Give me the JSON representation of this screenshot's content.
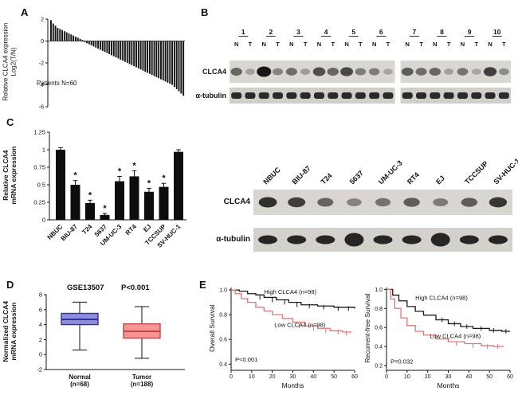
{
  "panels": {
    "a": {
      "label": "A",
      "ylabel_line1": "Relative CLCA4 expression",
      "ylabel_line2": "Log2(T/N)",
      "annotation": "Patients N=60"
    },
    "b": {
      "label": "B",
      "clca4_row": "CLCA4",
      "tubulin_row": "α-tubulin"
    },
    "c": {
      "label": "C",
      "ylabel_line1": "Relative CLCA4",
      "ylabel_line2": "mRNA expression"
    },
    "b2": {
      "clca4_row": "CLCA4",
      "tubulin_row": "α-tubulin"
    },
    "d": {
      "label": "D",
      "title": "GSE13507",
      "pvalue": "P<0.001",
      "ylabel_line1": "Normalized CLCA4",
      "ylabel_line2": "mRNA expression"
    },
    "e": {
      "label": "E",
      "ylabel_left": "Overall Survival",
      "ylabel_right": "Recurrent-free Survival"
    }
  },
  "blots": {
    "paired": {
      "lane_labels": [
        "N",
        "T"
      ],
      "samples": [
        {
          "id": "1",
          "N": 0.5,
          "T": 0.12
        },
        {
          "id": "2",
          "N": 1.0,
          "T": 0.3
        },
        {
          "id": "3",
          "N": 0.45,
          "T": 0.15
        },
        {
          "id": "4",
          "N": 0.65,
          "T": 0.5
        },
        {
          "id": "5",
          "N": 0.7,
          "T": 0.35
        },
        {
          "id": "6",
          "N": 0.35,
          "T": 0.1
        },
        {
          "id": "7",
          "N": 0.55,
          "T": 0.45
        },
        {
          "id": "8",
          "N": 0.5,
          "T": 0.12
        },
        {
          "id": "9",
          "N": 0.4,
          "T": 0.1
        },
        {
          "id": "10",
          "N": 0.75,
          "T": 0.25
        }
      ]
    },
    "cell_lines": {
      "names": [
        "NBUC",
        "BIU-87",
        "T24",
        "5637",
        "UM-UC-3",
        "RT4",
        "EJ",
        "TCCSUP",
        "SV-HUC-1"
      ],
      "clca4": [
        0.85,
        0.75,
        0.5,
        0.3,
        0.4,
        0.55,
        0.35,
        0.55,
        0.8
      ],
      "tubulin": [
        0.9,
        0.9,
        0.9,
        1.0,
        0.9,
        0.9,
        1.0,
        0.9,
        0.9
      ]
    }
  },
  "chart_data": [
    {
      "id": "clca4-waterfall",
      "type": "bar",
      "ylabel": "Relative CLCA4 expression Log2(T/N)",
      "annotation": "Patients N=60",
      "ylim": [
        -6,
        2
      ],
      "yticks": [
        2,
        0,
        -2,
        -4,
        -6
      ],
      "values": [
        1.9,
        1.6,
        1.4,
        1.2,
        1.1,
        1.0,
        0.9,
        0.8,
        0.7,
        0.6,
        0.5,
        0.4,
        0.3,
        0.2,
        0.1,
        -0.1,
        -0.2,
        -0.3,
        -0.4,
        -0.5,
        -0.6,
        -0.7,
        -0.8,
        -0.9,
        -1.0,
        -1.1,
        -1.2,
        -1.3,
        -1.4,
        -1.5,
        -1.6,
        -1.7,
        -1.8,
        -1.9,
        -2.0,
        -2.1,
        -2.2,
        -2.3,
        -2.4,
        -2.5,
        -2.6,
        -2.7,
        -2.8,
        -2.9,
        -3.0,
        -3.1,
        -3.2,
        -3.3,
        -3.4,
        -3.5,
        -3.6,
        -3.7,
        -3.8,
        -3.9,
        -4.0,
        -4.2,
        -4.4,
        -4.6,
        -4.8,
        -5.0
      ]
    },
    {
      "id": "cell-line-qpcr",
      "type": "bar",
      "ylabel": "Relative CLCA4 mRNA expression",
      "ylim": [
        0,
        1.25
      ],
      "yticks": [
        0,
        0.25,
        0.5,
        0.75,
        1,
        1.25
      ],
      "ytick_labels": [
        "0",
        "0.25",
        "0.5",
        "0.75",
        "1",
        "1.25"
      ],
      "categories": [
        "NBUC",
        "BIU-87",
        "T24",
        "5637",
        "UM-UC-3",
        "RT4",
        "EJ",
        "TCCSUP",
        "SV-HUC-1"
      ],
      "values": [
        1.0,
        0.5,
        0.24,
        0.07,
        0.55,
        0.62,
        0.4,
        0.47,
        0.97
      ],
      "errors": [
        0.03,
        0.06,
        0.04,
        0.02,
        0.07,
        0.08,
        0.05,
        0.05,
        0.03
      ],
      "significant": [
        false,
        true,
        true,
        true,
        true,
        true,
        true,
        true,
        false
      ],
      "sig_symbol": "*"
    },
    {
      "id": "gse13507-box",
      "type": "box",
      "title": "GSE13507",
      "pvalue": "P<0.001",
      "ylabel": "Normalized CLCA4 mRNA expression",
      "ylim": [
        -2,
        8
      ],
      "yticks": [
        8,
        6,
        4,
        2,
        0,
        -2
      ],
      "groups": [
        {
          "label_line1": "Normal",
          "label_line2": "(n=68)",
          "whisker_low": 0.6,
          "q1": 4.0,
          "median": 4.7,
          "q3": 5.5,
          "whisker_high": 7.0,
          "fill": "#8d8ddc",
          "stroke": "#32329b"
        },
        {
          "label_line1": "Tumor",
          "label_line2": "(n=188)",
          "whisker_low": -0.5,
          "q1": 2.2,
          "median": 3.1,
          "q3": 4.1,
          "whisker_high": 6.4,
          "fill": "#f79494",
          "stroke": "#c04747"
        }
      ]
    },
    {
      "id": "km-overall",
      "type": "line",
      "ylabel": "Overall Survival",
      "xlabel": "Months",
      "pvalue": "P<0.001",
      "p_pos": [
        2,
        0.42
      ],
      "ylim": [
        0.35,
        1.02
      ],
      "yticks": [
        1.0,
        0.8,
        0.6,
        0.4
      ],
      "ytick_labels": [
        "1.0",
        "0.8",
        "0.6",
        "0.4"
      ],
      "xticks": [
        0,
        10,
        20,
        30,
        40,
        50,
        60
      ],
      "series": [
        {
          "name": "High CLCA4 (n=98)",
          "color": "#1a1a1a",
          "label_pos": [
            16,
            0.97
          ],
          "points": [
            [
              0,
              1.0
            ],
            [
              4,
              0.99
            ],
            [
              8,
              0.97
            ],
            [
              12,
              0.96
            ],
            [
              16,
              0.94
            ],
            [
              22,
              0.92
            ],
            [
              28,
              0.9
            ],
            [
              34,
              0.88
            ],
            [
              42,
              0.87
            ],
            [
              50,
              0.86
            ],
            [
              60,
              0.85
            ]
          ],
          "censors": [
            [
              14,
              0.94
            ],
            [
              20,
              0.92
            ],
            [
              26,
              0.9
            ],
            [
              32,
              0.88
            ],
            [
              38,
              0.87
            ],
            [
              45,
              0.86
            ],
            [
              52,
              0.85
            ],
            [
              57,
              0.85
            ]
          ]
        },
        {
          "name": "Low CLCA4 (n=98)",
          "color": "#e57373",
          "label_pos": [
            21,
            0.7
          ],
          "points": [
            [
              0,
              1.0
            ],
            [
              2,
              0.97
            ],
            [
              5,
              0.93
            ],
            [
              8,
              0.9
            ],
            [
              12,
              0.86
            ],
            [
              16,
              0.83
            ],
            [
              20,
              0.8
            ],
            [
              25,
              0.77
            ],
            [
              30,
              0.74
            ],
            [
              36,
              0.71
            ],
            [
              42,
              0.69
            ],
            [
              48,
              0.67
            ],
            [
              54,
              0.66
            ],
            [
              58,
              0.65
            ]
          ],
          "censors": [
            [
              33,
              0.71
            ],
            [
              40,
              0.69
            ],
            [
              46,
              0.67
            ],
            [
              52,
              0.66
            ],
            [
              56,
              0.65
            ]
          ]
        }
      ]
    },
    {
      "id": "km-rfs",
      "type": "line",
      "ylabel": "Recurrent-free Survival",
      "xlabel": "Months",
      "pvalue": "P=0.032",
      "p_pos": [
        2,
        0.22
      ],
      "ylim": [
        0.15,
        1.02
      ],
      "yticks": [
        1.0,
        0.8,
        0.6,
        0.4,
        0.2
      ],
      "ytick_labels": [
        "1.0",
        "0.8",
        "0.6",
        "0.4",
        "0.2"
      ],
      "xticks": [
        0,
        10,
        20,
        30,
        40,
        50,
        60
      ],
      "series": [
        {
          "name": "High CLCA4 (n=98)",
          "color": "#1a1a1a",
          "label_pos": [
            14,
            0.89
          ],
          "points": [
            [
              0,
              1.0
            ],
            [
              3,
              0.94
            ],
            [
              6,
              0.88
            ],
            [
              10,
              0.82
            ],
            [
              14,
              0.77
            ],
            [
              18,
              0.73
            ],
            [
              24,
              0.68
            ],
            [
              30,
              0.64
            ],
            [
              36,
              0.61
            ],
            [
              42,
              0.59
            ],
            [
              50,
              0.57
            ],
            [
              56,
              0.56
            ],
            [
              60,
              0.56
            ]
          ],
          "censors": [
            [
              27,
              0.68
            ],
            [
              33,
              0.64
            ],
            [
              39,
              0.61
            ],
            [
              46,
              0.59
            ],
            [
              52,
              0.57
            ],
            [
              58,
              0.56
            ]
          ]
        },
        {
          "name": "Low CLCA4 (n=98)",
          "color": "#e57373",
          "label_pos": [
            21,
            0.49
          ],
          "points": [
            [
              0,
              1.0
            ],
            [
              2,
              0.9
            ],
            [
              4,
              0.8
            ],
            [
              7,
              0.7
            ],
            [
              10,
              0.62
            ],
            [
              14,
              0.56
            ],
            [
              18,
              0.52
            ],
            [
              24,
              0.48
            ],
            [
              30,
              0.45
            ],
            [
              38,
              0.43
            ],
            [
              46,
              0.41
            ],
            [
              52,
              0.4
            ],
            [
              57,
              0.4
            ]
          ],
          "censors": [
            [
              34,
              0.43
            ],
            [
              42,
              0.41
            ],
            [
              49,
              0.4
            ],
            [
              54,
              0.4
            ]
          ]
        }
      ]
    }
  ]
}
